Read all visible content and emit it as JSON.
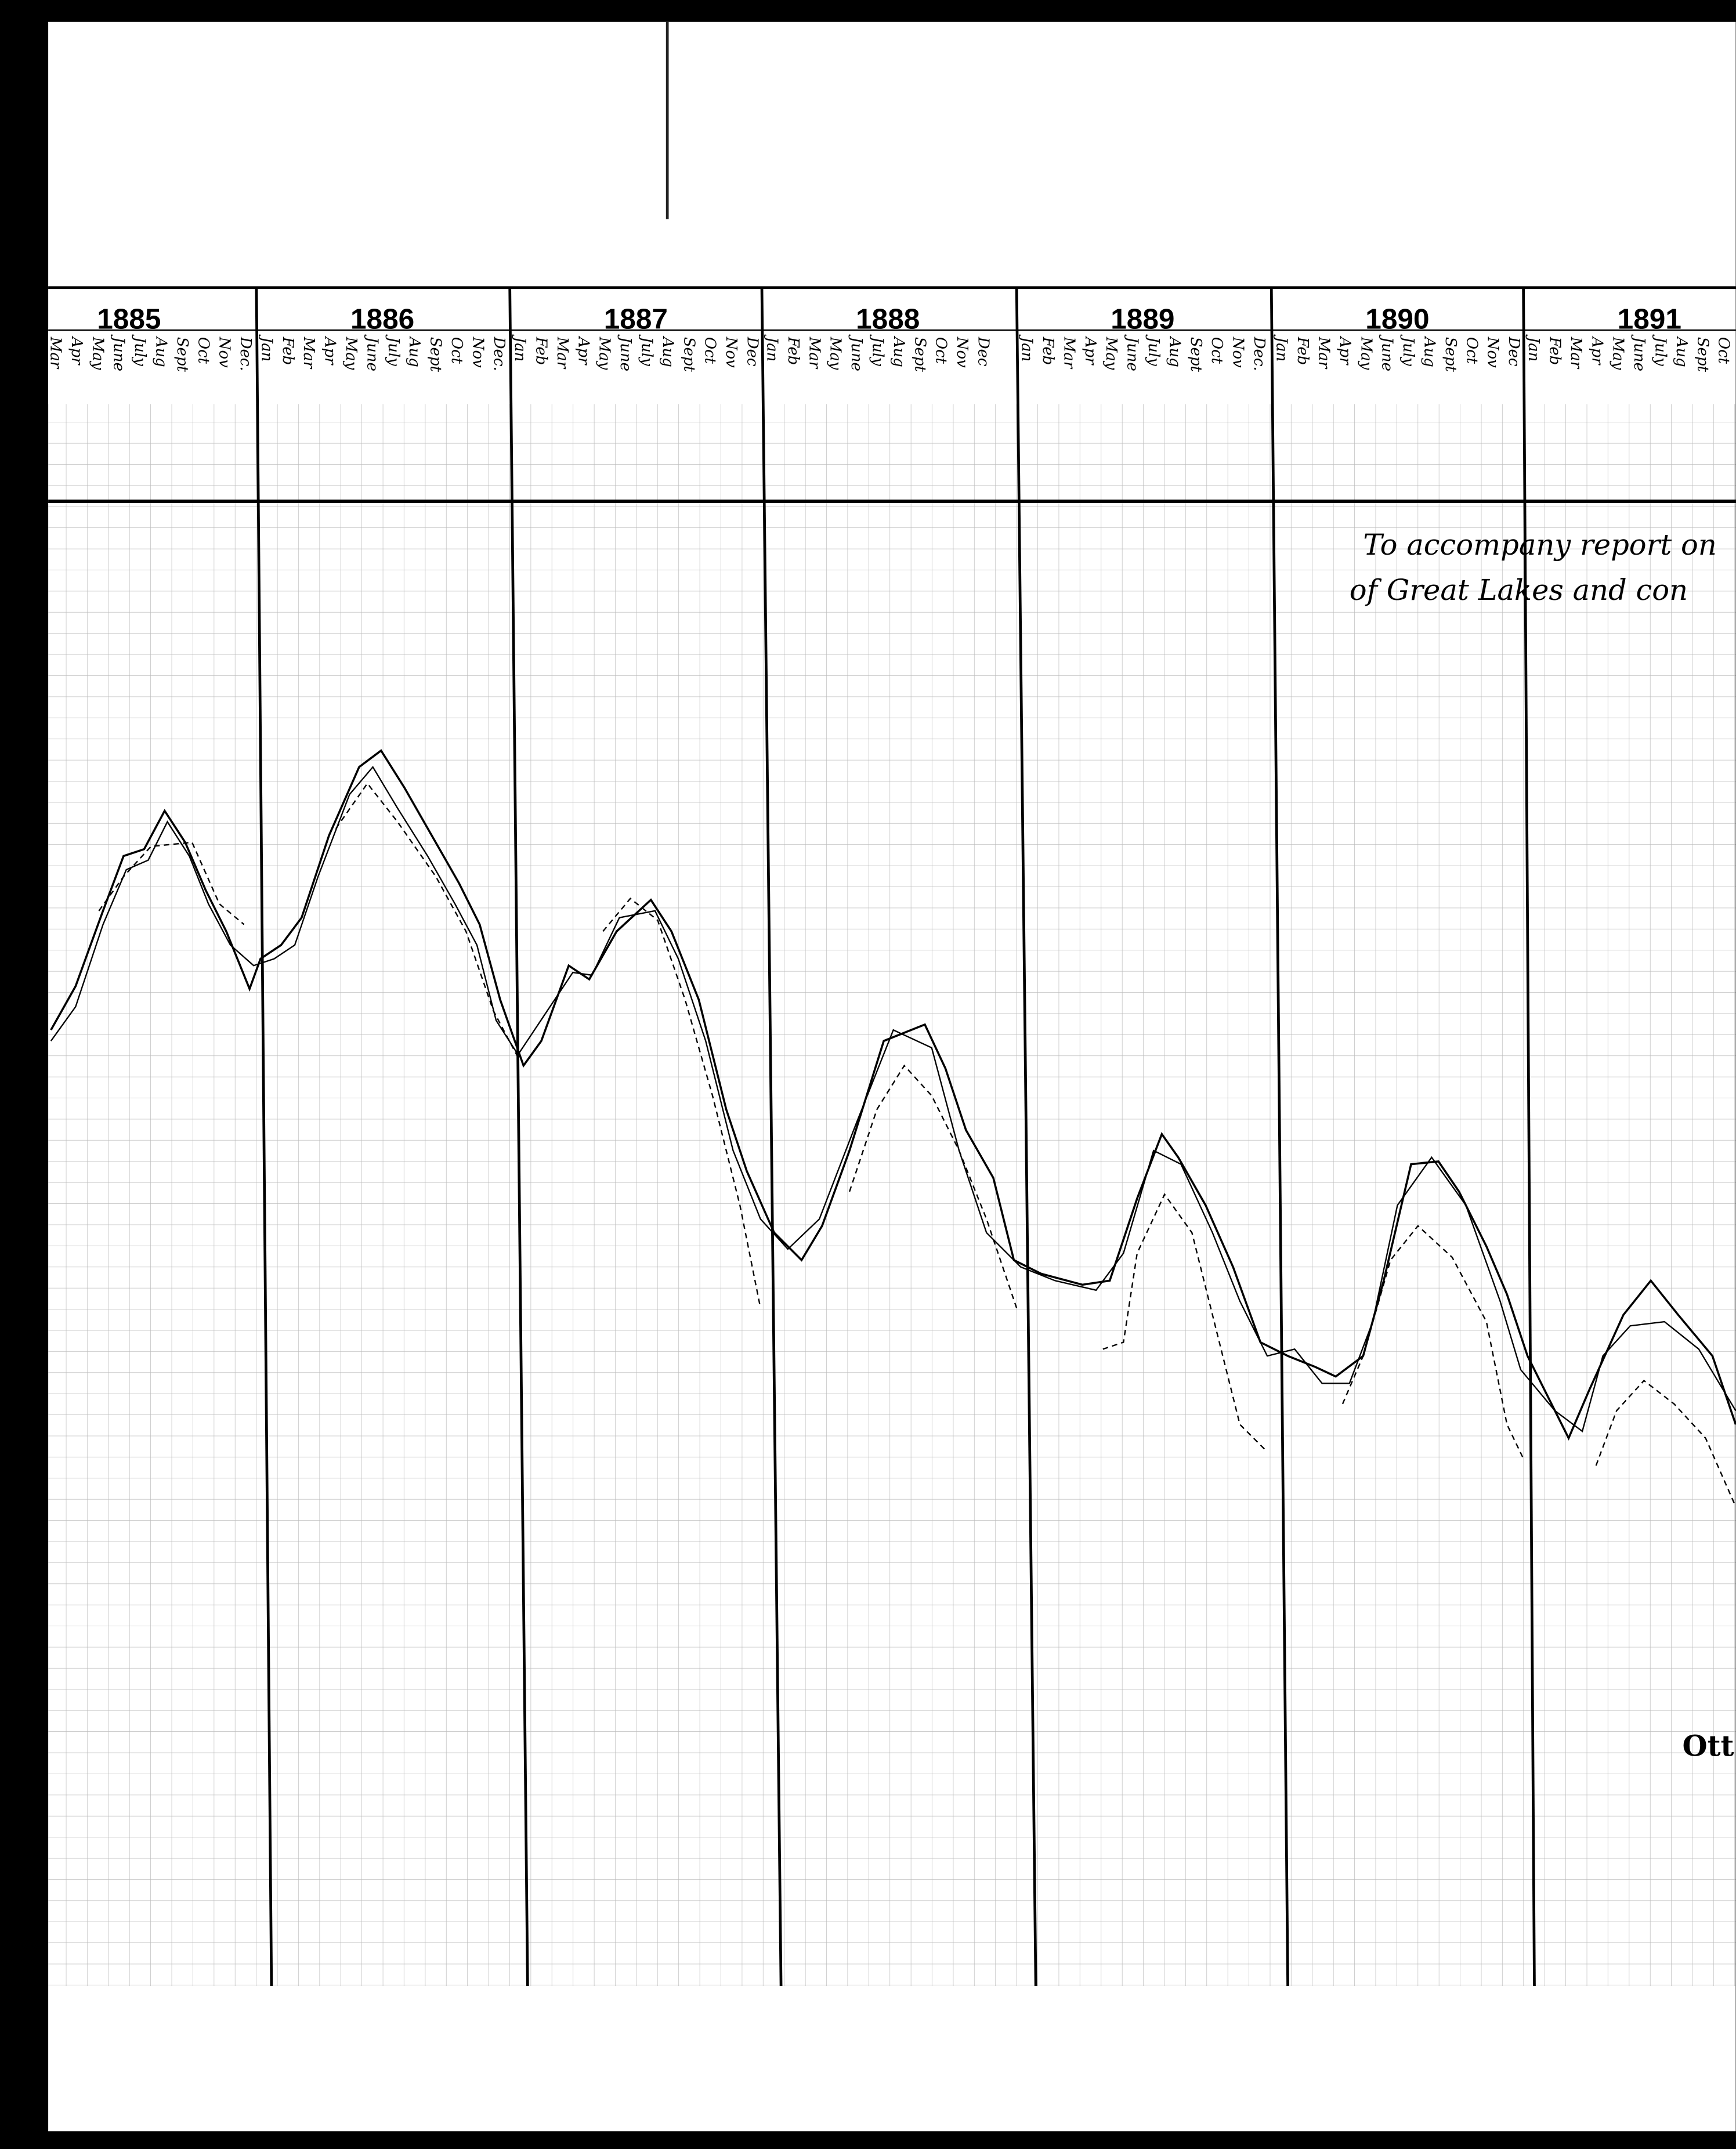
{
  "header": {
    "years": [
      {
        "label": "1885",
        "months": [
          "Mar",
          "Apr",
          "May",
          "June",
          "July",
          "Aug",
          "Sept",
          "Oct",
          "Nov",
          "Dec."
        ]
      },
      {
        "label": "1886",
        "months": [
          "Jan",
          "Feb",
          "Mar",
          "Apr",
          "May",
          "June",
          "July",
          "Aug",
          "Sept",
          "Oct",
          "Nov",
          "Dec."
        ]
      },
      {
        "label": "1887",
        "months": [
          "Jan",
          "Feb",
          "Mar",
          "Apr",
          "May",
          "June",
          "July",
          "Aug",
          "Sept",
          "Oct",
          "Nov",
          "Dec"
        ]
      },
      {
        "label": "1888",
        "months": [
          "Jan",
          "Feb",
          "Mar",
          "May",
          "June",
          "July",
          "Aug",
          "Sept",
          "Oct",
          "Nov",
          "Dec"
        ]
      },
      {
        "label": "1889",
        "months": [
          "Jan",
          "Feb",
          "Mar",
          "Apr",
          "May",
          "June",
          "July",
          "Aug",
          "Sept",
          "Oct",
          "Nov",
          "Dec."
        ]
      },
      {
        "label": "1890",
        "months": [
          "Jan",
          "Feb",
          "Mar",
          "Apr",
          "May",
          "June",
          "July",
          "Aug",
          "Sept",
          "Oct",
          "Nov",
          "Dec"
        ]
      },
      {
        "label": "1891",
        "months": [
          "Jan",
          "Feb",
          "Mar",
          "Apr",
          "May",
          "June",
          "July",
          "Aug",
          "Sept",
          "Oct"
        ]
      }
    ]
  },
  "annotation": {
    "lines": [
      "To accompany report on",
      "of Great Lakes and con"
    ]
  },
  "footer": {
    "text": "Ott"
  }
}
